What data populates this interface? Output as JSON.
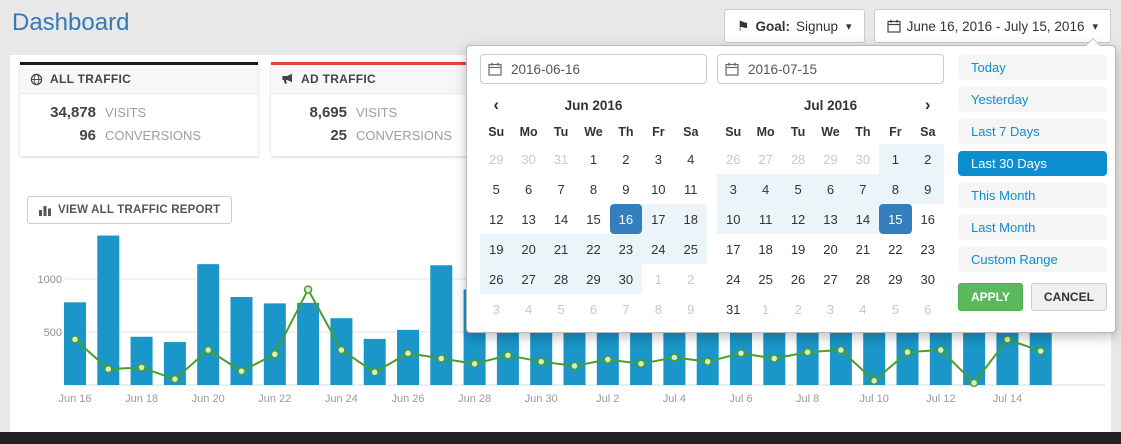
{
  "header": {
    "title": "Dashboard",
    "goal": {
      "label": "Goal:",
      "value": "Signup"
    },
    "date_range": "June 16, 2016 - July 15, 2016"
  },
  "icons": {
    "flag": "⚑",
    "caret": "▾",
    "prev": "‹",
    "next": "›"
  },
  "colors": {
    "brand_blue": "#337ab7",
    "bar_blue": "#1a96c8",
    "line_green": "#4a9e2f",
    "selected_date": "#357ebd",
    "in_range_bg": "#ebf4f8",
    "range_active": "#0d8ecf",
    "apply_green": "#5cb85c",
    "card_all_accent": "#1b1b1b",
    "card_ad_accent": "#e0443a",
    "footer_dark": "#222222"
  },
  "cards": [
    {
      "title": "ALL TRAFFIC",
      "icon": "globe-icon",
      "accent": "#1b1b1b",
      "stats": [
        {
          "value": "34,878",
          "label": "VISITS"
        },
        {
          "value": "96",
          "label": "CONVERSIONS"
        }
      ]
    },
    {
      "title": "AD TRAFFIC",
      "icon": "megaphone-icon",
      "accent": "#e0443a",
      "stats": [
        {
          "value": "8,695",
          "label": "VISITS"
        },
        {
          "value": "25",
          "label": "CONVERSIONS"
        }
      ]
    }
  ],
  "view_report_button": "VIEW ALL TRAFFIC REPORT",
  "datepicker": {
    "start_input": "2016-06-16",
    "end_input": "2016-07-15",
    "apply_label": "APPLY",
    "cancel_label": "CANCEL",
    "ranges": [
      {
        "label": "Today",
        "active": false
      },
      {
        "label": "Yesterday",
        "active": false
      },
      {
        "label": "Last 7 Days",
        "active": false
      },
      {
        "label": "Last 30 Days",
        "active": true
      },
      {
        "label": "This Month",
        "active": false
      },
      {
        "label": "Last Month",
        "active": false
      },
      {
        "label": "Custom Range",
        "active": false
      }
    ],
    "months": [
      {
        "title": "Jun 2016",
        "prev": true,
        "next": false,
        "dow": [
          "Su",
          "Mo",
          "Tu",
          "We",
          "Th",
          "Fr",
          "Sa"
        ],
        "weeks": [
          [
            {
              "d": 29,
              "s": "off"
            },
            {
              "d": 30,
              "s": "off"
            },
            {
              "d": 31,
              "s": "off"
            },
            {
              "d": 1,
              "s": ""
            },
            {
              "d": 2,
              "s": ""
            },
            {
              "d": 3,
              "s": ""
            },
            {
              "d": 4,
              "s": ""
            }
          ],
          [
            {
              "d": 5,
              "s": ""
            },
            {
              "d": 6,
              "s": ""
            },
            {
              "d": 7,
              "s": ""
            },
            {
              "d": 8,
              "s": ""
            },
            {
              "d": 9,
              "s": ""
            },
            {
              "d": 10,
              "s": ""
            },
            {
              "d": 11,
              "s": ""
            }
          ],
          [
            {
              "d": 12,
              "s": ""
            },
            {
              "d": 13,
              "s": ""
            },
            {
              "d": 14,
              "s": ""
            },
            {
              "d": 15,
              "s": ""
            },
            {
              "d": 16,
              "s": "act"
            },
            {
              "d": 17,
              "s": "in"
            },
            {
              "d": 18,
              "s": "in"
            }
          ],
          [
            {
              "d": 19,
              "s": "in"
            },
            {
              "d": 20,
              "s": "in"
            },
            {
              "d": 21,
              "s": "in"
            },
            {
              "d": 22,
              "s": "in"
            },
            {
              "d": 23,
              "s": "in"
            },
            {
              "d": 24,
              "s": "in"
            },
            {
              "d": 25,
              "s": "in"
            }
          ],
          [
            {
              "d": 26,
              "s": "in"
            },
            {
              "d": 27,
              "s": "in"
            },
            {
              "d": 28,
              "s": "in"
            },
            {
              "d": 29,
              "s": "in"
            },
            {
              "d": 30,
              "s": "in"
            },
            {
              "d": 1,
              "s": "off"
            },
            {
              "d": 2,
              "s": "off"
            }
          ],
          [
            {
              "d": 3,
              "s": "off"
            },
            {
              "d": 4,
              "s": "off"
            },
            {
              "d": 5,
              "s": "off"
            },
            {
              "d": 6,
              "s": "off"
            },
            {
              "d": 7,
              "s": "off"
            },
            {
              "d": 8,
              "s": "off"
            },
            {
              "d": 9,
              "s": "off"
            }
          ]
        ]
      },
      {
        "title": "Jul 2016",
        "prev": false,
        "next": true,
        "dow": [
          "Su",
          "Mo",
          "Tu",
          "We",
          "Th",
          "Fr",
          "Sa"
        ],
        "weeks": [
          [
            {
              "d": 26,
              "s": "off"
            },
            {
              "d": 27,
              "s": "off"
            },
            {
              "d": 28,
              "s": "off"
            },
            {
              "d": 29,
              "s": "off"
            },
            {
              "d": 30,
              "s": "off"
            },
            {
              "d": 1,
              "s": "in"
            },
            {
              "d": 2,
              "s": "in"
            }
          ],
          [
            {
              "d": 3,
              "s": "in"
            },
            {
              "d": 4,
              "s": "in"
            },
            {
              "d": 5,
              "s": "in"
            },
            {
              "d": 6,
              "s": "in"
            },
            {
              "d": 7,
              "s": "in"
            },
            {
              "d": 8,
              "s": "in"
            },
            {
              "d": 9,
              "s": "in"
            }
          ],
          [
            {
              "d": 10,
              "s": "in"
            },
            {
              "d": 11,
              "s": "in"
            },
            {
              "d": 12,
              "s": "in"
            },
            {
              "d": 13,
              "s": "in"
            },
            {
              "d": 14,
              "s": "in"
            },
            {
              "d": 15,
              "s": "act"
            },
            {
              "d": 16,
              "s": ""
            }
          ],
          [
            {
              "d": 17,
              "s": ""
            },
            {
              "d": 18,
              "s": ""
            },
            {
              "d": 19,
              "s": ""
            },
            {
              "d": 20,
              "s": ""
            },
            {
              "d": 21,
              "s": ""
            },
            {
              "d": 22,
              "s": ""
            },
            {
              "d": 23,
              "s": ""
            }
          ],
          [
            {
              "d": 24,
              "s": ""
            },
            {
              "d": 25,
              "s": ""
            },
            {
              "d": 26,
              "s": ""
            },
            {
              "d": 27,
              "s": ""
            },
            {
              "d": 28,
              "s": ""
            },
            {
              "d": 29,
              "s": ""
            },
            {
              "d": 30,
              "s": ""
            }
          ],
          [
            {
              "d": 31,
              "s": ""
            },
            {
              "d": 1,
              "s": "off"
            },
            {
              "d": 2,
              "s": "off"
            },
            {
              "d": 3,
              "s": "off"
            },
            {
              "d": 4,
              "s": "off"
            },
            {
              "d": 5,
              "s": "off"
            },
            {
              "d": 6,
              "s": "off"
            }
          ]
        ]
      }
    ]
  },
  "chart_data": {
    "type": "bar",
    "x": [
      "Jun 16",
      "Jun 17",
      "Jun 18",
      "Jun 19",
      "Jun 20",
      "Jun 21",
      "Jun 22",
      "Jun 23",
      "Jun 24",
      "Jun 25",
      "Jun 26",
      "Jun 27",
      "Jun 28",
      "Jun 29",
      "Jun 30",
      "Jul 1",
      "Jul 2",
      "Jul 3",
      "Jul 4",
      "Jul 5",
      "Jul 6",
      "Jul 7",
      "Jul 8",
      "Jul 9",
      "Jul 10",
      "Jul 11",
      "Jul 12",
      "Jul 13",
      "Jul 14",
      "Jul 15"
    ],
    "series": [
      {
        "name": "Visits",
        "type": "bar",
        "color": "#1a96c8",
        "values": [
          780,
          1410,
          455,
          405,
          1140,
          830,
          770,
          775,
          630,
          435,
          520,
          1130,
          900,
          760,
          820,
          700,
          650,
          600,
          720,
          680,
          750,
          640,
          700,
          760,
          690,
          755,
          750,
          760,
          750,
          755
        ]
      },
      {
        "name": "Conversions",
        "type": "line",
        "color": "#4a9e2f",
        "values": [
          430,
          150,
          165,
          55,
          330,
          130,
          290,
          900,
          330,
          120,
          300,
          250,
          200,
          280,
          220,
          180,
          240,
          200,
          260,
          220,
          300,
          250,
          310,
          330,
          40,
          310,
          330,
          20,
          430,
          320
        ]
      }
    ],
    "title": "",
    "xlabel": "",
    "ylabel": "",
    "ylim": [
      0,
      1500
    ],
    "yticks": [
      500,
      1000
    ],
    "tick_label_step": 2,
    "grid": true,
    "legend_position": "none"
  }
}
